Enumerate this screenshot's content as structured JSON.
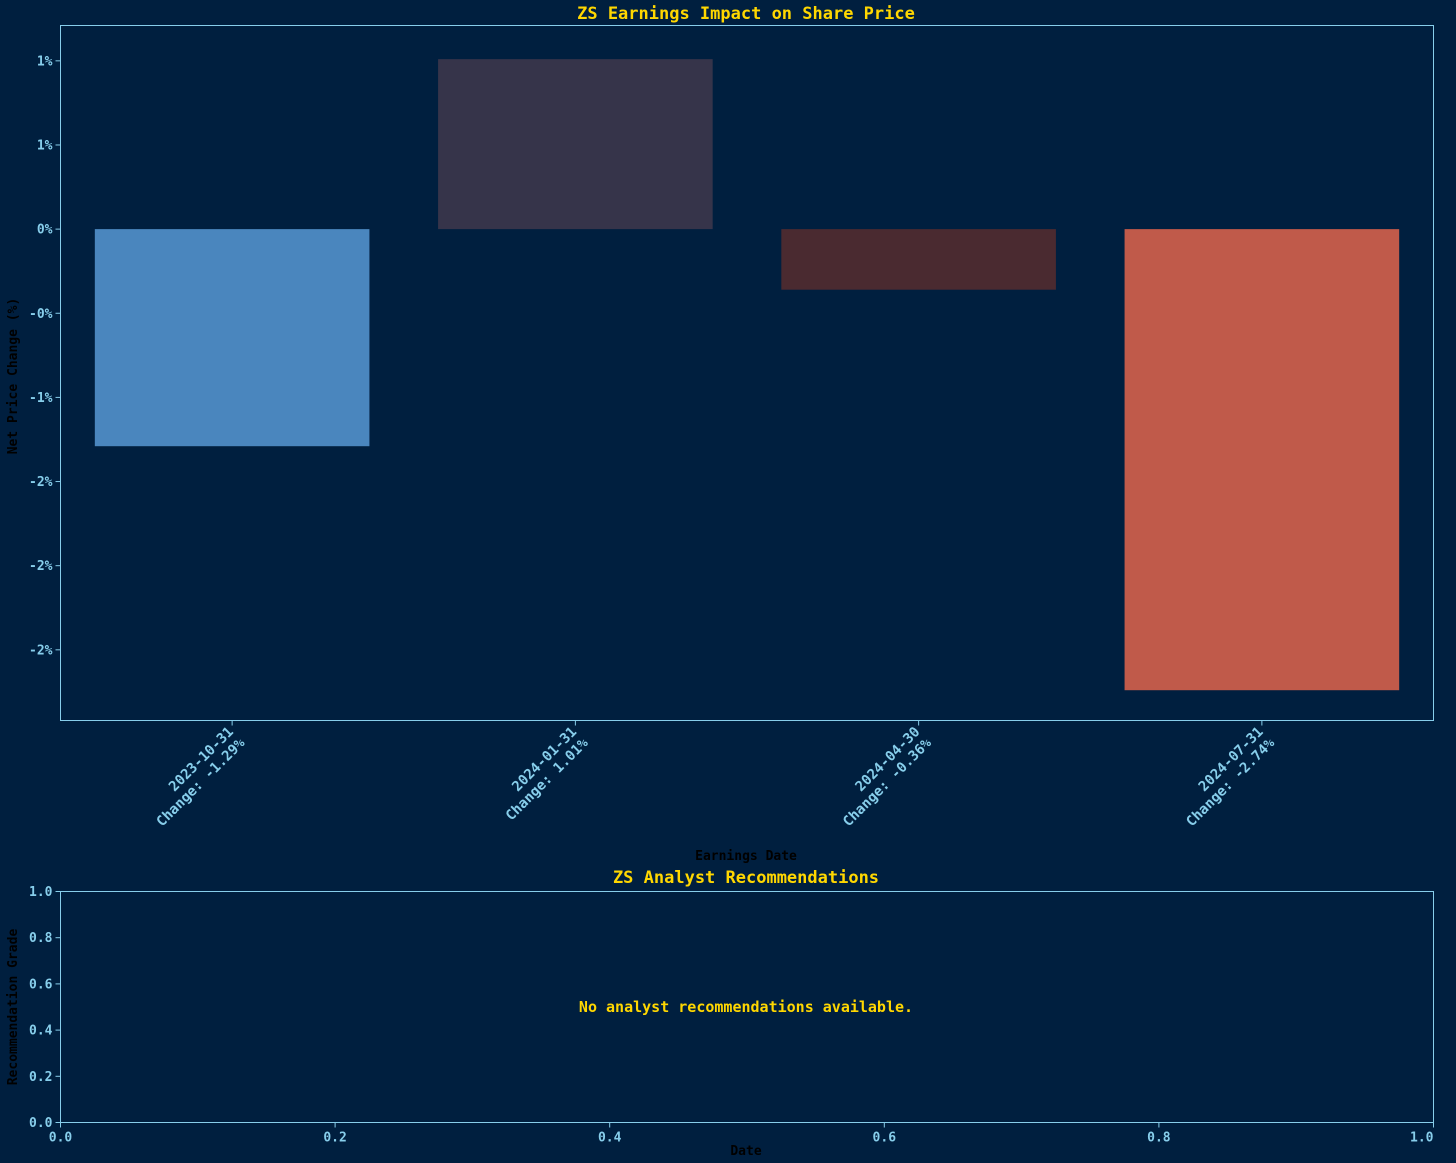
{
  "chart_data": [
    {
      "type": "bar",
      "title": "ZS Earnings Impact on Share Price",
      "xlabel": "Earnings Date",
      "ylabel": "Net Price Change (%)",
      "categories": [
        [
          "2023-10-31",
          "Change: -1.29%"
        ],
        [
          "2024-01-31",
          "Change: 1.01%"
        ],
        [
          "2024-04-30",
          "Change: -0.36%"
        ],
        [
          "2024-07-31",
          "Change: -2.74%"
        ]
      ],
      "values": [
        -1.29,
        1.01,
        -0.36,
        -2.74
      ],
      "colors": [
        "#4a86be",
        "#36344a",
        "#4a2a30",
        "#c05a4a"
      ],
      "yticks": [
        1.0,
        0.5,
        0.0,
        -0.5,
        -1.0,
        -1.5,
        -2.0,
        -2.5
      ],
      "ytick_labels": [
        "1%",
        "1%",
        "0%",
        "-0%",
        "-1%",
        "-2%",
        "-2%",
        "-2%"
      ],
      "ylim": [
        -2.92,
        1.21
      ],
      "grid": false
    },
    {
      "type": "scatter",
      "title": "ZS Analyst Recommendations",
      "xlabel": "Date",
      "ylabel": "Recommendation Grade",
      "xlim": [
        0,
        1
      ],
      "ylim": [
        0,
        1
      ],
      "xticks": [
        "0.0",
        "0.2",
        "0.4",
        "0.6",
        "0.8",
        "1.0"
      ],
      "yticks": [
        "0.0",
        "0.2",
        "0.4",
        "0.6",
        "0.8",
        "1.0"
      ],
      "message": "No analyst recommendations available.",
      "grid": false
    }
  ]
}
